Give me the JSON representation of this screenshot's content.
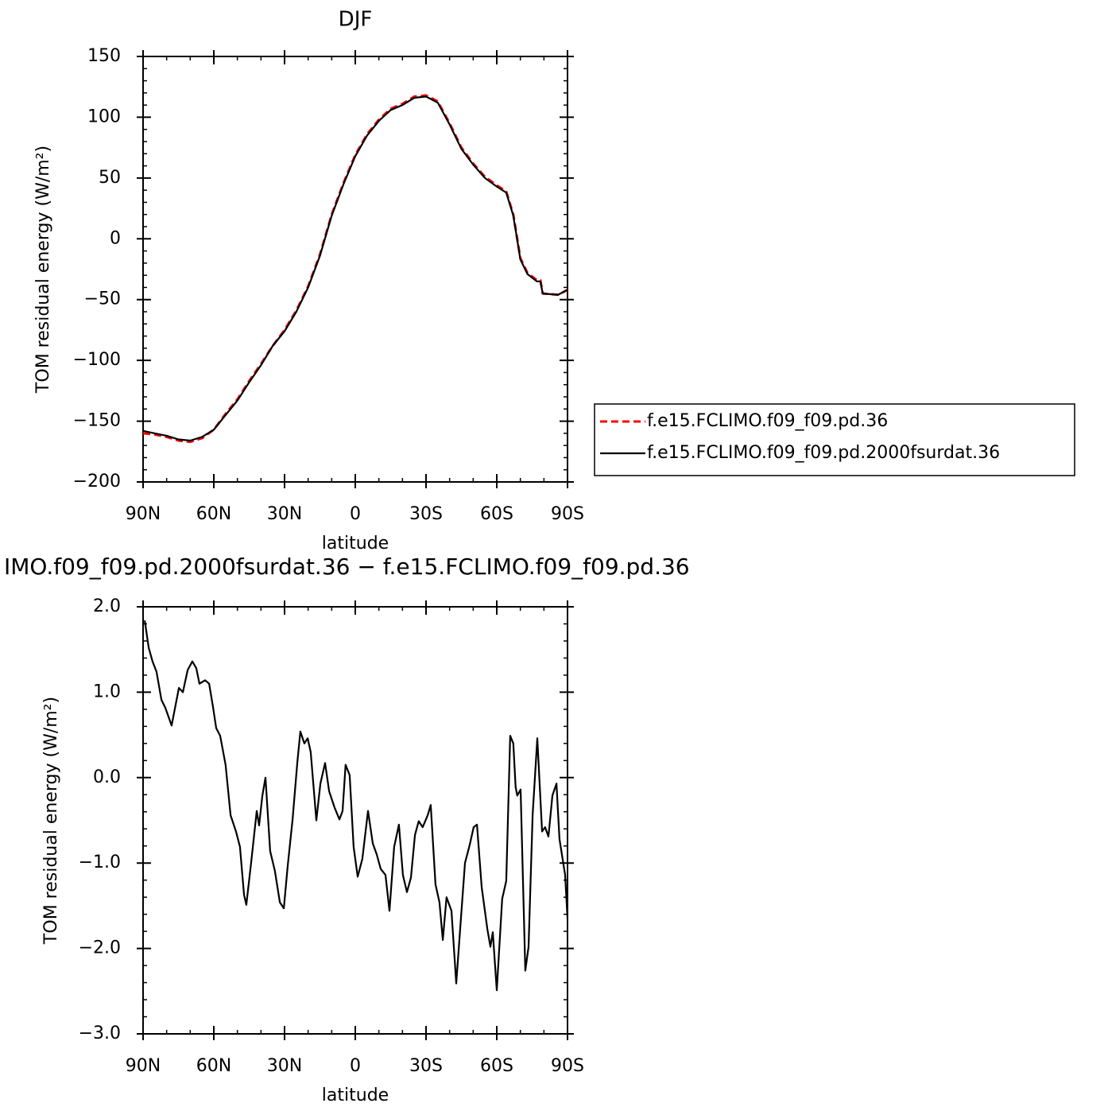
{
  "chart_data": [
    {
      "type": "line",
      "title": "DJF",
      "xlabel": "latitude",
      "ylabel": "TOM residual energy (W/m²)",
      "x": [
        90,
        85,
        80,
        75,
        70,
        65,
        60,
        55,
        50,
        45,
        40,
        35,
        30,
        25,
        20,
        15,
        10,
        5,
        0,
        -5,
        -10,
        -15,
        -20,
        -25,
        -30,
        -35,
        -40,
        -45,
        -50,
        -55,
        -60,
        -64,
        -67,
        -70,
        -73,
        -77,
        -78.5,
        -79.5,
        -86,
        -90
      ],
      "series": [
        {
          "name": "f.e15.FCLIMO.f09_f09.pd.36",
          "color": "#ff0000",
          "linestyle": "dashed",
          "values": [
            -160,
            -161,
            -163,
            -166,
            -167,
            -164,
            -157,
            -144,
            -132,
            -117,
            -103,
            -88,
            -75,
            -59,
            -39,
            -13,
            20,
            46,
            69,
            86,
            98,
            107,
            111,
            117,
            118,
            113,
            95,
            75,
            62,
            51,
            44,
            39,
            20,
            -16,
            -28,
            -34,
            -34,
            -45,
            -46,
            -42
          ]
        },
        {
          "name": "f.e15.FCLIMO.f09_f09.pd.2000fsurdat.36",
          "color": "#000000",
          "linestyle": "solid",
          "values": [
            -158,
            -160,
            -162,
            -165,
            -166,
            -163,
            -157,
            -145,
            -133,
            -118,
            -104,
            -88,
            -76,
            -60,
            -40,
            -14,
            19,
            45,
            68,
            85,
            97,
            106,
            110,
            116,
            117,
            112,
            94,
            74,
            61,
            50,
            43,
            38,
            19,
            -17,
            -29,
            -35,
            -35,
            -45,
            -46,
            -42
          ]
        }
      ],
      "xlim": [
        90,
        -90
      ],
      "xticks": [
        {
          "value": 90,
          "label": "90N"
        },
        {
          "value": 60,
          "label": "60N"
        },
        {
          "value": 30,
          "label": "30N"
        },
        0,
        {
          "value": -30,
          "label": "30S"
        },
        {
          "value": -60,
          "label": "60S"
        },
        {
          "value": -90,
          "label": "90S"
        }
      ],
      "ylim": [
        -200,
        150
      ],
      "yticks": [
        {
          "value": -200,
          "label": "−200"
        },
        {
          "value": -150,
          "label": "−150"
        },
        {
          "value": -100,
          "label": "−100"
        },
        {
          "value": -50,
          "label": "−50"
        },
        0,
        50,
        100,
        150
      ],
      "legend": "right"
    },
    {
      "type": "line",
      "title": "IMO.f09_f09.pd.2000fsurdat.36 − f.e15.FCLIMO.f09_f09.pd.36",
      "xlabel": "latitude",
      "ylabel": "TOM residual energy (W/m²)",
      "x": [
        89.3,
        87.6,
        86,
        84.3,
        82.2,
        80.6,
        77.9,
        74.8,
        73.1,
        71.1,
        69.1,
        67.4,
        66.1,
        63.7,
        62,
        60.3,
        59,
        57.3,
        55,
        52.9,
        50.6,
        48.9,
        47.2,
        46.2,
        44.2,
        41.8,
        40.8,
        39.4,
        38.1,
        36.1,
        34.1,
        32,
        30.3,
        28.7,
        26.6,
        24.6,
        23.3,
        21.6,
        20.2,
        18.9,
        16.5,
        14.8,
        12.8,
        11.1,
        8.8,
        6.7,
        5.4,
        4.1,
        2.4,
        0.7,
        -1,
        -3,
        -5.4,
        -7.4,
        -9.1,
        -10.8,
        -12.8,
        -14.5,
        -16.5,
        -18.5,
        -20.2,
        -21.9,
        -23.6,
        -25.3,
        -26.9,
        -28.6,
        -30.7,
        -32,
        -34,
        -35.7,
        -37.1,
        -38.7,
        -40.8,
        -42.8,
        -44.8,
        -46.5,
        -48.5,
        -50.2,
        -51.6,
        -53.6,
        -56,
        -57.3,
        -58.3,
        -60,
        -62.3,
        -64,
        -65.7,
        -67,
        -68,
        -68.7,
        -70.1,
        -72.1,
        -73.5,
        -75.2,
        -77.2,
        -79.2,
        -80.5,
        -81.9,
        -83.6,
        -85.3,
        -86.6,
        -89,
        -90
      ],
      "values": [
        1.84,
        1.52,
        1.36,
        1.24,
        0.91,
        0.82,
        0.61,
        1.05,
        1.0,
        1.26,
        1.36,
        1.28,
        1.1,
        1.14,
        1.1,
        0.82,
        0.58,
        0.49,
        0.15,
        -0.44,
        -0.63,
        -0.81,
        -1.37,
        -1.49,
        -1.0,
        -0.39,
        -0.56,
        -0.21,
        0.0,
        -0.86,
        -1.09,
        -1.46,
        -1.53,
        -1.04,
        -0.49,
        0.17,
        0.54,
        0.4,
        0.46,
        0.3,
        -0.5,
        -0.07,
        0.17,
        -0.16,
        -0.35,
        -0.49,
        -0.39,
        0.15,
        0.03,
        -0.81,
        -1.16,
        -0.95,
        -0.39,
        -0.77,
        -0.9,
        -1.07,
        -1.14,
        -1.56,
        -0.81,
        -0.55,
        -1.14,
        -1.34,
        -1.17,
        -0.67,
        -0.51,
        -0.58,
        -0.44,
        -0.32,
        -1.25,
        -1.46,
        -1.9,
        -1.4,
        -1.56,
        -2.41,
        -1.65,
        -1.0,
        -0.79,
        -0.58,
        -0.55,
        -1.28,
        -1.77,
        -1.98,
        -1.81,
        -2.49,
        -1.42,
        -1.21,
        0.49,
        0.4,
        -0.11,
        -0.21,
        -0.14,
        -2.26,
        -1.98,
        -0.44,
        0.46,
        -0.63,
        -0.58,
        -0.69,
        -0.21,
        -0.07,
        -0.72,
        -1.14,
        -1.65
      ],
      "color": "#000000",
      "xlim": [
        90,
        -90
      ],
      "xticks": [
        {
          "value": 90,
          "label": "90N"
        },
        {
          "value": 60,
          "label": "60N"
        },
        {
          "value": 30,
          "label": "30N"
        },
        0,
        {
          "value": -30,
          "label": "30S"
        },
        {
          "value": -60,
          "label": "60S"
        },
        {
          "value": -90,
          "label": "90S"
        }
      ],
      "ylim": [
        -3,
        2
      ],
      "yticks": [
        {
          "value": -3,
          "label": "−3.0"
        },
        {
          "value": -2,
          "label": "−2.0"
        },
        {
          "value": -1,
          "label": "−1.0"
        },
        {
          "value": 0,
          "label": "0.0"
        },
        {
          "value": 1,
          "label": "1.0"
        },
        {
          "value": 2,
          "label": "2.0"
        }
      ]
    }
  ]
}
